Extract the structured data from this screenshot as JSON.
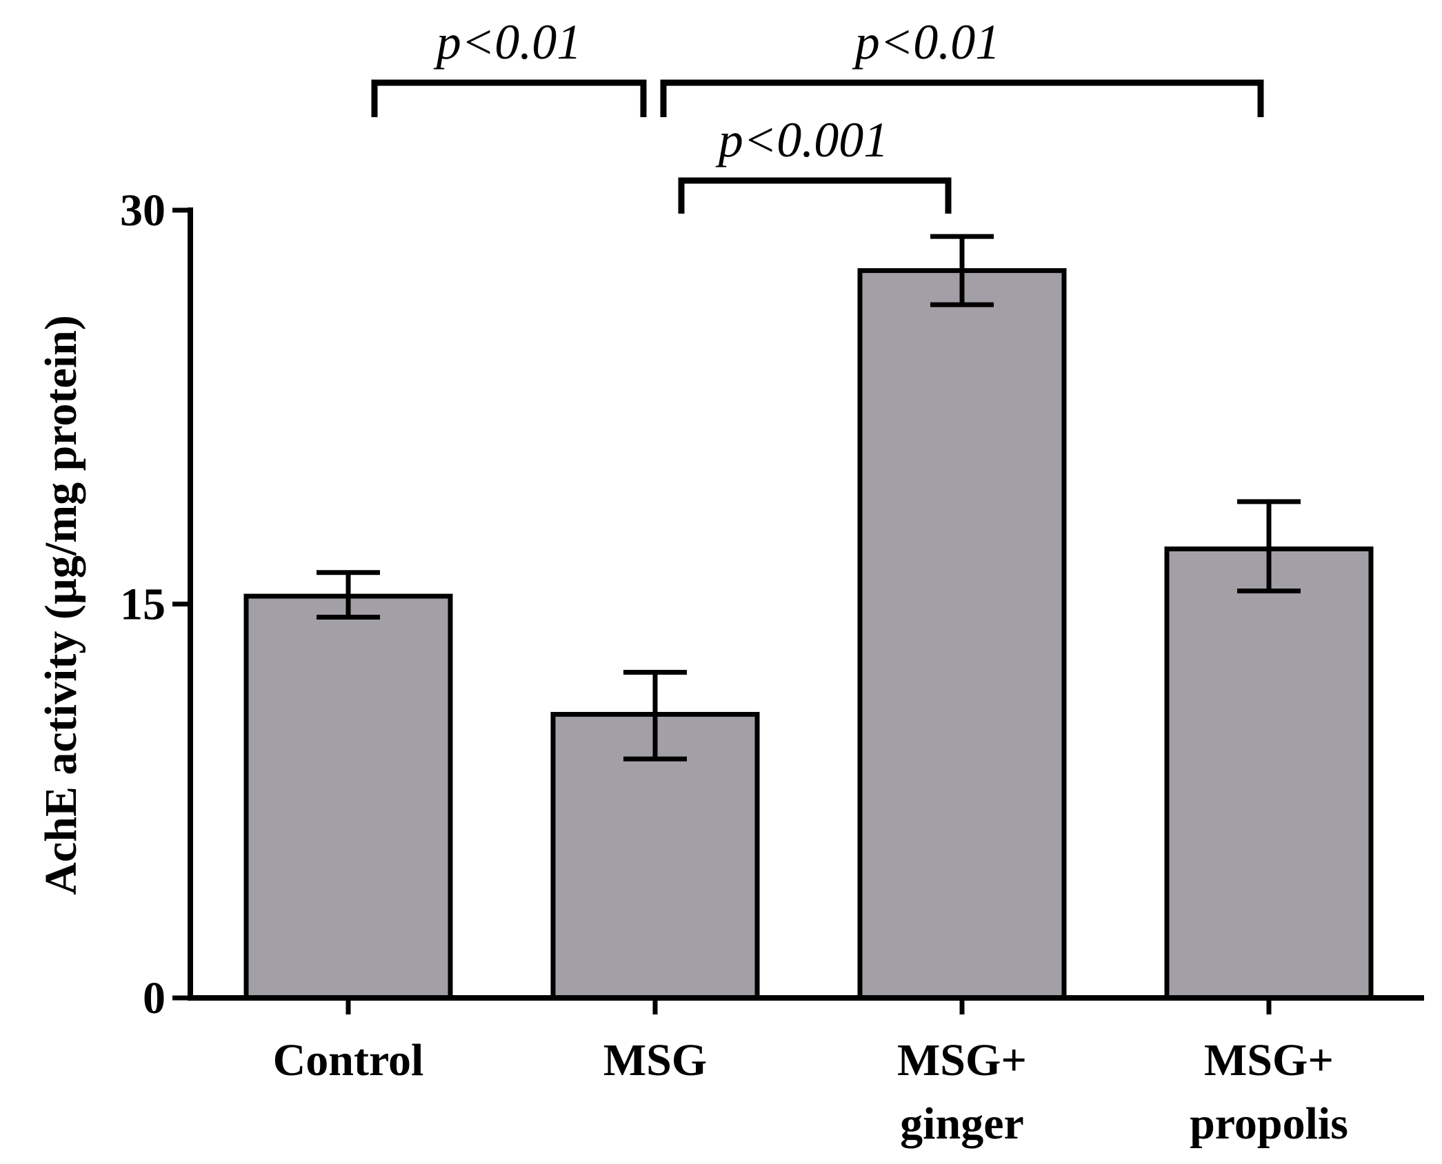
{
  "chart_data": {
    "type": "bar",
    "title": "",
    "xlabel": "",
    "ylabel": "AchE activity (µg/mg protein)",
    "ylim": [
      0,
      30
    ],
    "yticks": [
      {
        "value": 0,
        "label": "0"
      },
      {
        "value": 15,
        "label": "15"
      },
      {
        "value": 30,
        "label": "30"
      }
    ],
    "categories": [
      {
        "line1": "Control",
        "line2": ""
      },
      {
        "line1": "MSG",
        "line2": ""
      },
      {
        "line1": "MSG+",
        "line2": "ginger"
      },
      {
        "line1": "MSG+",
        "line2": "propolis"
      }
    ],
    "values": [
      15.3,
      10.8,
      27.7,
      17.1
    ],
    "error_low": [
      14.5,
      9.1,
      26.4,
      15.5
    ],
    "error_high": [
      16.2,
      12.4,
      29.0,
      18.9
    ],
    "bar_color": "#a39fa7",
    "edge_color": "#000000",
    "significance": [
      {
        "from": 0,
        "to": 1,
        "label": "p<0.01"
      },
      {
        "from": 1,
        "to": 3,
        "label": "p<0.01"
      },
      {
        "from": 1,
        "to": 2,
        "label": "p<0.001"
      }
    ]
  }
}
